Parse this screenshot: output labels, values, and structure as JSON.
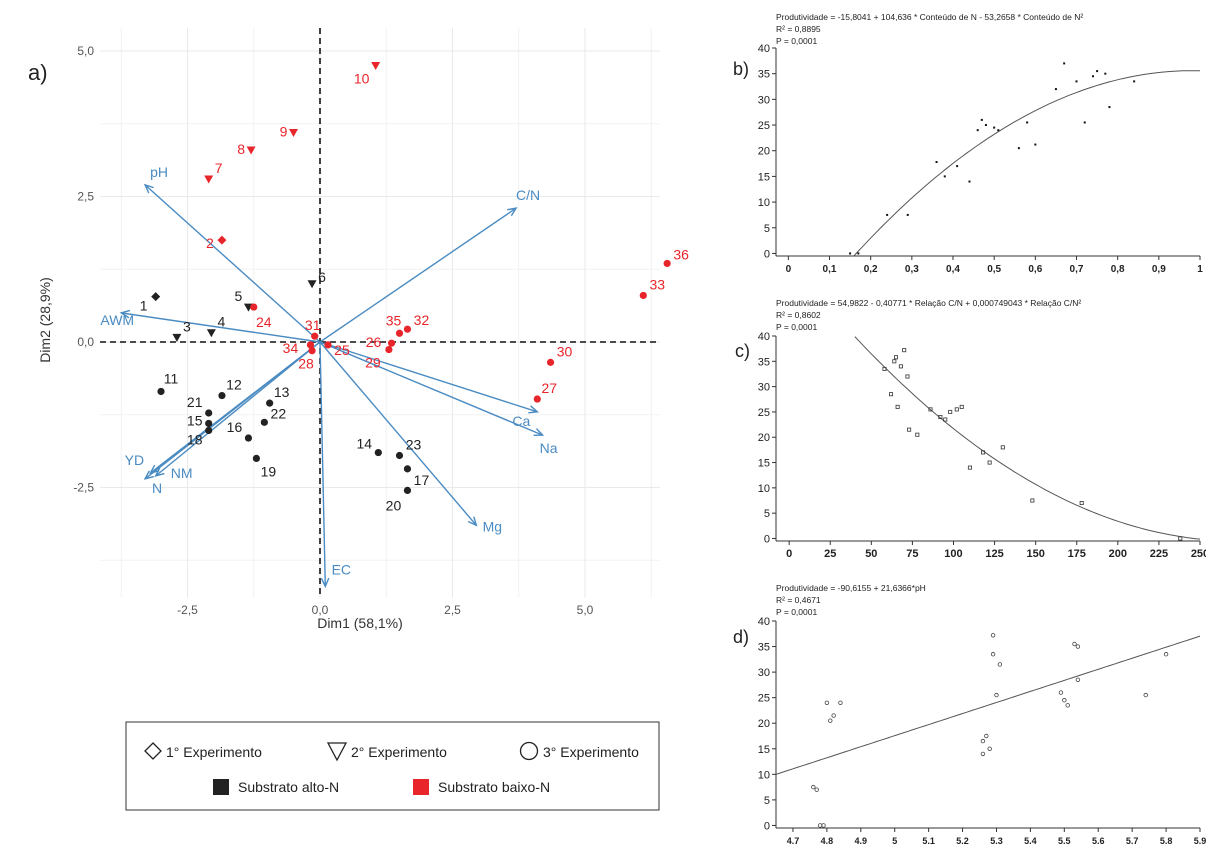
{
  "colors": {
    "black_group": "#222222",
    "red_group": "#e8252b",
    "vector": "#4a8bc2",
    "grid": "#e9e9e9",
    "fit_line": "#555555"
  },
  "panel_a": {
    "label": "a)",
    "xlabel": "Dim1 (58,1%)",
    "ylabel": "Dim2 (28,9%)",
    "legend": {
      "shapes": [
        {
          "symbol": "diamond",
          "label": "1° Experimento"
        },
        {
          "symbol": "triangle-down",
          "label": "2° Experimento"
        },
        {
          "symbol": "circle",
          "label": "3° Experimento"
        }
      ],
      "colors": [
        {
          "color": "#222222",
          "label": "Substrato alto-N"
        },
        {
          "color": "#e8252b",
          "label": "Substrato baixo-N"
        }
      ]
    }
  },
  "panel_b": {
    "label": "b)",
    "equation": "Produtividade = -15,8041 + 104,636 * Conteúdo de N - 53,2658 * Conteúdo de N²",
    "r2": "R² = 0,8895",
    "p": "P = 0,0001"
  },
  "panel_c": {
    "label": "c)",
    "equation": "Produtividade = 54,9822 - 0,40771 * Relação C/N + 0,000749043 * Relação C/N²",
    "r2": "R² = 0,8602",
    "p": "P = 0,0001"
  },
  "panel_d": {
    "label": "d)",
    "equation": "Produtividade = -90,6155 + 21,6366*pH",
    "r2": "R² = 0,4671",
    "p": "P = 0,0001"
  },
  "chart_data": [
    {
      "type": "scatter",
      "panel": "a",
      "xlabel": "Dim1 (58,1%)",
      "ylabel": "Dim2 (28,9%)",
      "xlim": [
        -4.0,
        7.0
      ],
      "ylim": [
        -4.5,
        5.5
      ],
      "x_ticks": [
        -2.5,
        0,
        2.5,
        5
      ],
      "x_tick_labels": [
        "-2,5",
        "0,0",
        "2,5",
        "5,0"
      ],
      "y_ticks": [
        -2.5,
        0,
        2.5,
        5
      ],
      "y_tick_labels": [
        "-2,5",
        "0,0",
        "2,5",
        "5,0"
      ],
      "grid": true,
      "points": [
        {
          "label": "1",
          "x": -3.1,
          "y": 0.78,
          "shape": "diamond",
          "group": "alto"
        },
        {
          "label": "2",
          "x": -1.85,
          "y": 1.75,
          "shape": "diamond",
          "group": "baixo"
        },
        {
          "label": "3",
          "x": -2.7,
          "y": 0.08,
          "shape": "triangle",
          "group": "alto"
        },
        {
          "label": "4",
          "x": -2.05,
          "y": 0.16,
          "shape": "triangle",
          "group": "alto"
        },
        {
          "label": "5",
          "x": -1.35,
          "y": 0.6,
          "shape": "triangle",
          "group": "alto"
        },
        {
          "label": "6",
          "x": -0.15,
          "y": 1.0,
          "shape": "triangle",
          "group": "alto"
        },
        {
          "label": "7",
          "x": -2.1,
          "y": 2.8,
          "shape": "triangle",
          "group": "baixo"
        },
        {
          "label": "8",
          "x": -1.3,
          "y": 3.3,
          "shape": "triangle",
          "group": "baixo"
        },
        {
          "label": "9",
          "x": -0.5,
          "y": 3.6,
          "shape": "triangle",
          "group": "baixo"
        },
        {
          "label": "10",
          "x": 1.05,
          "y": 4.75,
          "shape": "triangle",
          "group": "baixo"
        },
        {
          "label": "11",
          "x": -3.0,
          "y": -0.85,
          "shape": "circle",
          "group": "alto"
        },
        {
          "label": "12",
          "x": -1.85,
          "y": -0.92,
          "shape": "circle",
          "group": "alto"
        },
        {
          "label": "13",
          "x": -0.95,
          "y": -1.05,
          "shape": "circle",
          "group": "alto"
        },
        {
          "label": "15",
          "x": -2.1,
          "y": -1.4,
          "shape": "circle",
          "group": "alto"
        },
        {
          "label": "16",
          "x": -1.35,
          "y": -1.65,
          "shape": "circle",
          "group": "alto"
        },
        {
          "label": "18",
          "x": -2.1,
          "y": -1.52,
          "shape": "circle",
          "group": "alto"
        },
        {
          "label": "19",
          "x": -1.2,
          "y": -2.0,
          "shape": "circle",
          "group": "alto"
        },
        {
          "label": "21",
          "x": -2.1,
          "y": -1.22,
          "shape": "circle",
          "group": "alto"
        },
        {
          "label": "22",
          "x": -1.05,
          "y": -1.38,
          "shape": "circle",
          "group": "alto"
        },
        {
          "label": "14",
          "x": 1.1,
          "y": -1.9,
          "shape": "circle",
          "group": "alto"
        },
        {
          "label": "23",
          "x": 1.5,
          "y": -1.95,
          "shape": "circle",
          "group": "alto"
        },
        {
          "label": "17",
          "x": 1.65,
          "y": -2.18,
          "shape": "circle",
          "group": "alto"
        },
        {
          "label": "20",
          "x": 1.65,
          "y": -2.55,
          "shape": "circle",
          "group": "alto"
        },
        {
          "label": "24",
          "x": -1.25,
          "y": 0.6,
          "shape": "circle",
          "group": "baixo"
        },
        {
          "label": "25",
          "x": 0.15,
          "y": -0.05,
          "shape": "circle",
          "group": "baixo"
        },
        {
          "label": "26",
          "x": 1.35,
          "y": -0.02,
          "shape": "circle",
          "group": "baixo"
        },
        {
          "label": "27",
          "x": 4.1,
          "y": -0.98,
          "shape": "circle",
          "group": "baixo"
        },
        {
          "label": "28",
          "x": -0.15,
          "y": -0.15,
          "shape": "circle",
          "group": "baixo"
        },
        {
          "label": "29",
          "x": 1.3,
          "y": -0.13,
          "shape": "circle",
          "group": "baixo"
        },
        {
          "label": "30",
          "x": 4.35,
          "y": -0.35,
          "shape": "circle",
          "group": "baixo"
        },
        {
          "label": "31",
          "x": -0.1,
          "y": 0.1,
          "shape": "circle",
          "group": "baixo"
        },
        {
          "label": "32",
          "x": 1.65,
          "y": 0.22,
          "shape": "circle",
          "group": "baixo"
        },
        {
          "label": "33",
          "x": 6.1,
          "y": 0.8,
          "shape": "circle",
          "group": "baixo"
        },
        {
          "label": "34",
          "x": -0.18,
          "y": -0.05,
          "shape": "circle",
          "group": "baixo"
        },
        {
          "label": "35",
          "x": 1.5,
          "y": 0.15,
          "shape": "circle",
          "group": "baixo"
        },
        {
          "label": "36",
          "x": 6.55,
          "y": 1.35,
          "shape": "circle",
          "group": "baixo"
        }
      ],
      "vectors": [
        {
          "label": "pH",
          "x": -3.3,
          "y": 2.7
        },
        {
          "label": "C/N",
          "x": 3.7,
          "y": 2.3
        },
        {
          "label": "AWM",
          "x": -3.75,
          "y": 0.5
        },
        {
          "label": "YD",
          "x": -3.2,
          "y": -2.25
        },
        {
          "label": "NM",
          "x": -3.1,
          "y": -2.3
        },
        {
          "label": "N",
          "x": -3.3,
          "y": -2.35
        },
        {
          "label": "Ca",
          "x": 4.1,
          "y": -1.2
        },
        {
          "label": "Na",
          "x": 4.2,
          "y": -1.6
        },
        {
          "label": "Mg",
          "x": 2.95,
          "y": -3.15
        },
        {
          "label": "EC",
          "x": 0.1,
          "y": -4.2
        }
      ]
    },
    {
      "type": "scatter",
      "panel": "b",
      "title": "Produtividade = -15,8041 + 104,636 * Conteúdo de N - 53,2658 * Conteúdo de N²",
      "xlim": [
        -0.03,
        1.0
      ],
      "ylim": [
        -0.5,
        40
      ],
      "x_ticks": [
        0,
        0.1,
        0.2,
        0.3,
        0.4,
        0.5,
        0.6,
        0.7,
        0.8,
        0.9,
        1
      ],
      "x_tick_labels": [
        "0",
        "0,1",
        "0,2",
        "0,3",
        "0,4",
        "0,5",
        "0,6",
        "0,7",
        "0,8",
        "0,9",
        "1"
      ],
      "y_ticks": [
        0,
        5,
        10,
        15,
        20,
        25,
        30,
        35,
        40
      ],
      "y_tick_labels": [
        "0",
        "5",
        "10",
        "15",
        "20",
        "25",
        "30",
        "35",
        "40"
      ],
      "fit": {
        "type": "quadratic",
        "coef": [
          -15.8041,
          104.636,
          -53.2658
        ],
        "x_from": 0.16,
        "x_to": 1.0
      },
      "points": [
        [
          0.15,
          0.0
        ],
        [
          0.17,
          0.0
        ],
        [
          0.24,
          7.5
        ],
        [
          0.29,
          7.5
        ],
        [
          0.36,
          17.8
        ],
        [
          0.38,
          15.0
        ],
        [
          0.41,
          17.0
        ],
        [
          0.44,
          14.0
        ],
        [
          0.46,
          24.0
        ],
        [
          0.47,
          26.0
        ],
        [
          0.48,
          25.0
        ],
        [
          0.5,
          24.5
        ],
        [
          0.51,
          24.0
        ],
        [
          0.56,
          20.5
        ],
        [
          0.58,
          25.5
        ],
        [
          0.6,
          21.2
        ],
        [
          0.65,
          32.0
        ],
        [
          0.67,
          37.0
        ],
        [
          0.7,
          33.5
        ],
        [
          0.72,
          25.5
        ],
        [
          0.74,
          34.5
        ],
        [
          0.75,
          35.5
        ],
        [
          0.77,
          35.0
        ],
        [
          0.78,
          28.5
        ],
        [
          0.84,
          33.5
        ]
      ]
    },
    {
      "type": "scatter",
      "panel": "c",
      "title": "Produtividade = 54,9822 - 0,40771 * Relação C/N + 0,000749043 * Relação C/N²",
      "xlim": [
        -8,
        250
      ],
      "ylim": [
        -0.5,
        40
      ],
      "x_ticks": [
        0,
        25,
        50,
        75,
        100,
        125,
        150,
        175,
        200,
        225,
        250
      ],
      "x_tick_labels": [
        "0",
        "25",
        "50",
        "75",
        "100",
        "125",
        "150",
        "175",
        "200",
        "225",
        "250"
      ],
      "y_ticks": [
        0,
        5,
        10,
        15,
        20,
        25,
        30,
        35,
        40
      ],
      "y_tick_labels": [
        "0",
        "5",
        "10",
        "15",
        "20",
        "25",
        "30",
        "35",
        "40"
      ],
      "fit": {
        "type": "quadratic",
        "coef": [
          54.9822,
          -0.40771,
          0.000749043
        ],
        "x_from": 40,
        "x_to": 250
      },
      "points": [
        [
          58,
          33.5
        ],
        [
          62,
          28.5
        ],
        [
          64,
          35.0
        ],
        [
          65,
          35.8
        ],
        [
          66,
          26.0
        ],
        [
          68,
          34.0
        ],
        [
          70,
          37.2
        ],
        [
          72,
          32.0
        ],
        [
          73,
          21.5
        ],
        [
          78,
          20.5
        ],
        [
          86,
          25.5
        ],
        [
          92,
          24.0
        ],
        [
          95,
          23.5
        ],
        [
          98,
          25.0
        ],
        [
          102,
          25.5
        ],
        [
          105,
          26.0
        ],
        [
          110,
          14.0
        ],
        [
          118,
          17.0
        ],
        [
          122,
          15.0
        ],
        [
          130,
          18.0
        ],
        [
          148,
          7.5
        ],
        [
          178,
          7.0
        ],
        [
          238,
          0.0
        ]
      ]
    },
    {
      "type": "scatter",
      "panel": "d",
      "title": "Produtividade = -90,6155 + 21,6366*pH",
      "xlim": [
        4.65,
        5.9
      ],
      "ylim": [
        -0.5,
        40
      ],
      "x_ticks": [
        4.7,
        4.8,
        4.9,
        5,
        5.1,
        5.2,
        5.3,
        5.4,
        5.5,
        5.6,
        5.7,
        5.8,
        5.9
      ],
      "x_tick_labels": [
        "4.7",
        "4.8",
        "4.9",
        "5",
        "5.1",
        "5.2",
        "5.3",
        "5.4",
        "5.5",
        "5.6",
        "5.7",
        "5.8",
        "5.9"
      ],
      "y_ticks": [
        0,
        5,
        10,
        15,
        20,
        25,
        30,
        35,
        40
      ],
      "y_tick_labels": [
        "0",
        "5",
        "10",
        "15",
        "20",
        "25",
        "30",
        "35",
        "40"
      ],
      "fit": {
        "type": "linear",
        "coef": [
          -90.6155,
          21.6366
        ],
        "x_from": 4.65,
        "x_to": 5.9
      },
      "points": [
        [
          4.76,
          7.5
        ],
        [
          4.77,
          7.0
        ],
        [
          4.78,
          0.0
        ],
        [
          4.79,
          0.0
        ],
        [
          4.8,
          24.0
        ],
        [
          4.81,
          20.5
        ],
        [
          4.82,
          21.5
        ],
        [
          4.84,
          24.0
        ],
        [
          5.26,
          14.0
        ],
        [
          5.26,
          16.5
        ],
        [
          5.27,
          17.5
        ],
        [
          5.28,
          15.0
        ],
        [
          5.29,
          37.2
        ],
        [
          5.29,
          33.5
        ],
        [
          5.3,
          25.5
        ],
        [
          5.31,
          31.5
        ],
        [
          5.49,
          26.0
        ],
        [
          5.5,
          24.5
        ],
        [
          5.51,
          23.5
        ],
        [
          5.53,
          35.5
        ],
        [
          5.54,
          35.0
        ],
        [
          5.54,
          28.5
        ],
        [
          5.74,
          25.5
        ],
        [
          5.8,
          33.5
        ]
      ]
    }
  ]
}
